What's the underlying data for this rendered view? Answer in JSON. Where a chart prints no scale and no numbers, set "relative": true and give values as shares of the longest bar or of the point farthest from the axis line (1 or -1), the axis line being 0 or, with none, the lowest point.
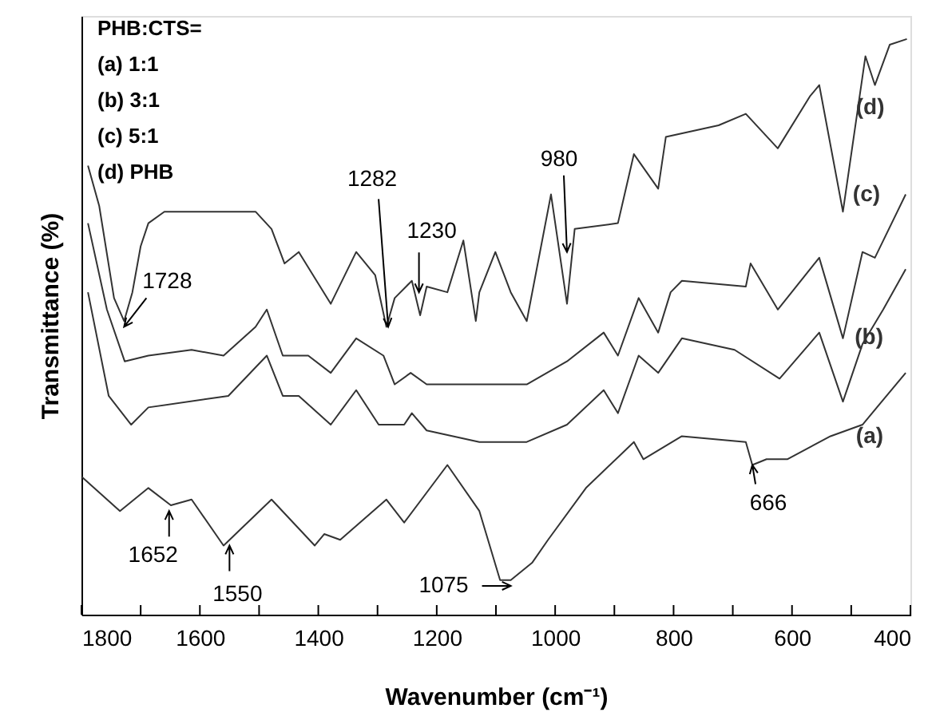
{
  "chart_data": {
    "type": "line",
    "relative": true,
    "xlabel": "Wavenumber (cm⁻¹)",
    "ylabel": "Transmittance (%)",
    "xlim": [
      1800,
      400
    ],
    "xticks": [
      1800,
      {
        "value": 1700,
        "label": null
      },
      1600,
      {
        "value": 1500,
        "label": null
      },
      1400,
      {
        "value": 1300,
        "label": null
      },
      1200,
      {
        "value": 1100,
        "label": null
      },
      1000,
      {
        "value": 900,
        "label": null
      },
      800,
      {
        "value": 700,
        "label": null
      },
      600,
      {
        "value": 500,
        "label": null
      },
      400
    ],
    "series": [
      {
        "name": "(a)",
        "color": "#333333",
        "x": [
          1800,
          1735,
          1687,
          1649,
          1614,
          1560,
          1479,
          1406,
          1390,
          1363,
          1285,
          1255,
          1182,
          1128,
          1093,
          1075,
          1039,
          1012,
          948,
          867,
          851,
          786,
          678,
          667,
          643,
          608,
          535,
          481,
          408
        ],
        "values": [
          0.24,
          0.18,
          0.22,
          0.19,
          0.2,
          0.12,
          0.2,
          0.12,
          0.14,
          0.13,
          0.2,
          0.16,
          0.26,
          0.18,
          0.06,
          0.06,
          0.09,
          0.13,
          0.22,
          0.3,
          0.27,
          0.31,
          0.3,
          0.26,
          0.27,
          0.27,
          0.31,
          0.33,
          0.42
        ]
      },
      {
        "name": "(b)",
        "color": "#333333",
        "x": [
          1789,
          1754,
          1716,
          1687,
          1552,
          1487,
          1460,
          1433,
          1379,
          1336,
          1298,
          1255,
          1242,
          1217,
          1128,
          1048,
          980,
          918,
          894,
          859,
          826,
          786,
          697,
          621,
          554,
          514,
          481,
          446,
          408
        ],
        "values": [
          0.56,
          0.38,
          0.33,
          0.36,
          0.38,
          0.45,
          0.38,
          0.38,
          0.33,
          0.39,
          0.33,
          0.33,
          0.35,
          0.32,
          0.3,
          0.3,
          0.33,
          0.39,
          0.35,
          0.45,
          0.42,
          0.48,
          0.46,
          0.41,
          0.49,
          0.37,
          0.47,
          0.53,
          0.6
        ]
      },
      {
        "name": "(c)",
        "color": "#333333",
        "x": [
          1789,
          1757,
          1727,
          1687,
          1614,
          1560,
          1506,
          1487,
          1460,
          1417,
          1379,
          1336,
          1290,
          1271,
          1244,
          1217,
          1128,
          1048,
          980,
          918,
          894,
          859,
          826,
          805,
          786,
          678,
          670,
          624,
          554,
          514,
          481,
          460,
          408
        ],
        "values": [
          0.68,
          0.53,
          0.44,
          0.45,
          0.46,
          0.45,
          0.5,
          0.53,
          0.45,
          0.45,
          0.42,
          0.48,
          0.45,
          0.4,
          0.42,
          0.4,
          0.4,
          0.4,
          0.44,
          0.49,
          0.45,
          0.55,
          0.49,
          0.56,
          0.58,
          0.57,
          0.61,
          0.53,
          0.62,
          0.48,
          0.63,
          0.62,
          0.73
        ]
      },
      {
        "name": "(d)",
        "color": "#333333",
        "x": [
          1789,
          1770,
          1745,
          1728,
          1714,
          1700,
          1687,
          1660,
          1560,
          1506,
          1479,
          1457,
          1433,
          1379,
          1336,
          1304,
          1285,
          1271,
          1242,
          1228,
          1217,
          1182,
          1155,
          1134,
          1128,
          1101,
          1075,
          1048,
          1007,
          980,
          967,
          894,
          867,
          826,
          813,
          724,
          678,
          624,
          570,
          554,
          514,
          476,
          460,
          435,
          406
        ],
        "values": [
          0.78,
          0.71,
          0.55,
          0.51,
          0.56,
          0.64,
          0.68,
          0.7,
          0.7,
          0.7,
          0.67,
          0.61,
          0.63,
          0.54,
          0.63,
          0.59,
          0.5,
          0.55,
          0.58,
          0.52,
          0.57,
          0.56,
          0.65,
          0.51,
          0.56,
          0.63,
          0.56,
          0.51,
          0.73,
          0.54,
          0.67,
          0.68,
          0.8,
          0.74,
          0.83,
          0.85,
          0.87,
          0.81,
          0.9,
          0.92,
          0.7,
          0.97,
          0.92,
          0.99,
          1.0
        ]
      }
    ],
    "annotations": [
      "PHB:CTS=",
      "(a) 1:1",
      "(b) 3:1",
      "(c) 5:1",
      "(d) PHB",
      {
        "text": "1728",
        "x": 1728,
        "y": 0.5
      },
      {
        "text": "1282",
        "x": 1282,
        "y": 0.5
      },
      {
        "text": "1230",
        "x": 1230,
        "y": 0.56
      },
      {
        "text": "980",
        "x": 980,
        "y": 0.63
      },
      {
        "text": "1652",
        "x": 1652,
        "y": 0.18
      },
      {
        "text": "1550",
        "x": 1550,
        "y": 0.12
      },
      {
        "text": "1075",
        "x": 1075,
        "y": 0.05
      },
      {
        "text": "666",
        "x": 667,
        "y": 0.26
      }
    ]
  }
}
